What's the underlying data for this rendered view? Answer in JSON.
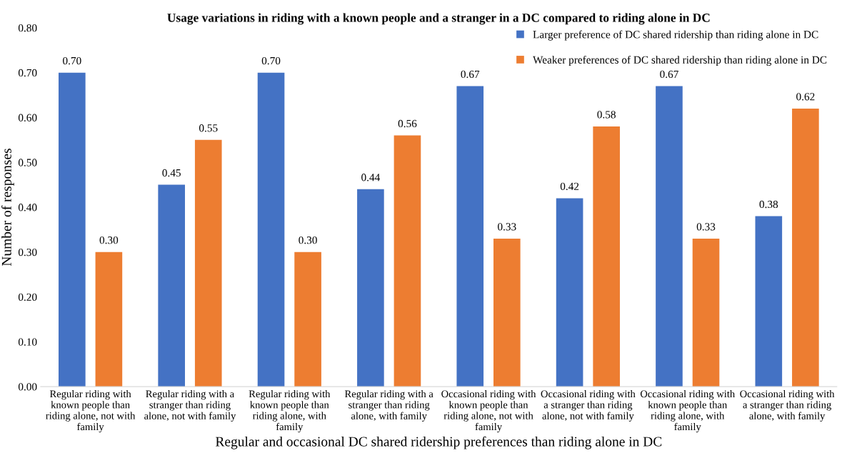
{
  "chart_data": {
    "type": "bar",
    "title": "Usage variations in riding with a known people and a stranger in a DC compared to riding alone in DC",
    "xlabel": "Regular and occasional DC shared ridership preferences than riding alone in DC",
    "ylabel": "Number of responses",
    "categories": [
      "Regular riding with known people than riding alone, not with family",
      "Regular riding with a stranger than riding alone, not with family",
      "Regular riding with known people than riding alone, with family",
      "Regular riding with a stranger than riding alone, with family",
      "Occasional riding with known people than riding alone, not with family",
      "Occasional riding with a stranger than riding alone, not with family",
      "Occasional riding with known people than riding alone, with family",
      "Occasional riding with a stranger than riding alone, with family"
    ],
    "series": [
      {
        "name": "Larger preference of DC shared ridership than riding alone in DC",
        "color": "#4472c4",
        "values": [
          0.7,
          0.45,
          0.7,
          0.44,
          0.67,
          0.42,
          0.67,
          0.38
        ],
        "value_labels": [
          "0.70",
          "0.45",
          "0.70",
          "0.44",
          "0.67",
          "0.42",
          "0.67",
          "0.38"
        ]
      },
      {
        "name": "Weaker preferences of DC shared ridership than riding alone in DC",
        "color": "#ed7d31",
        "values": [
          0.3,
          0.55,
          0.3,
          0.56,
          0.33,
          0.58,
          0.33,
          0.62
        ],
        "value_labels": [
          "0.30",
          "0.55",
          "0.30",
          "0.56",
          "0.33",
          "0.58",
          "0.33",
          "0.62"
        ]
      }
    ],
    "ylim": [
      0,
      0.8
    ],
    "yticks": [
      {
        "value": 0,
        "label": "0.00"
      },
      {
        "value": 0.1,
        "label": "0.10"
      },
      {
        "value": 0.2,
        "label": "0.20"
      },
      {
        "value": 0.3,
        "label": "0.30"
      },
      {
        "value": 0.4,
        "label": "0.40"
      },
      {
        "value": 0.5,
        "label": "0.50"
      },
      {
        "value": 0.6,
        "label": "0.60"
      },
      {
        "value": 0.7,
        "label": "0.70"
      },
      {
        "value": 0.8,
        "label": "0.80"
      }
    ],
    "grid": false,
    "legend": "top right"
  }
}
